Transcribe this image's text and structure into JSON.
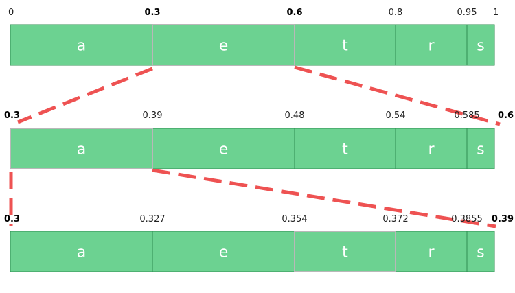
{
  "colors": {
    "segment_fill": "#6cd291",
    "segment_border": "#2f8f52",
    "highlight_border": "#b8b8b8",
    "connector": "#ee5252"
  },
  "symbols": [
    "a",
    "e",
    "t",
    "r",
    "s"
  ],
  "rows": [
    {
      "labels": [
        "0",
        "0.3",
        "0.6",
        "0.8",
        "0.95",
        "1"
      ],
      "bold": [
        1,
        2
      ],
      "highlight": 1
    },
    {
      "labels": [
        "0.3",
        "0.39",
        "0.48",
        "0.54",
        "0.585",
        "0.6"
      ],
      "bold": [
        0,
        5
      ],
      "highlight": 0
    },
    {
      "labels": [
        "0.3",
        "0.327",
        "0.354",
        "0.372",
        "0.3855",
        "0.39"
      ],
      "bold": [
        0,
        5
      ],
      "highlight": 2
    }
  ]
}
